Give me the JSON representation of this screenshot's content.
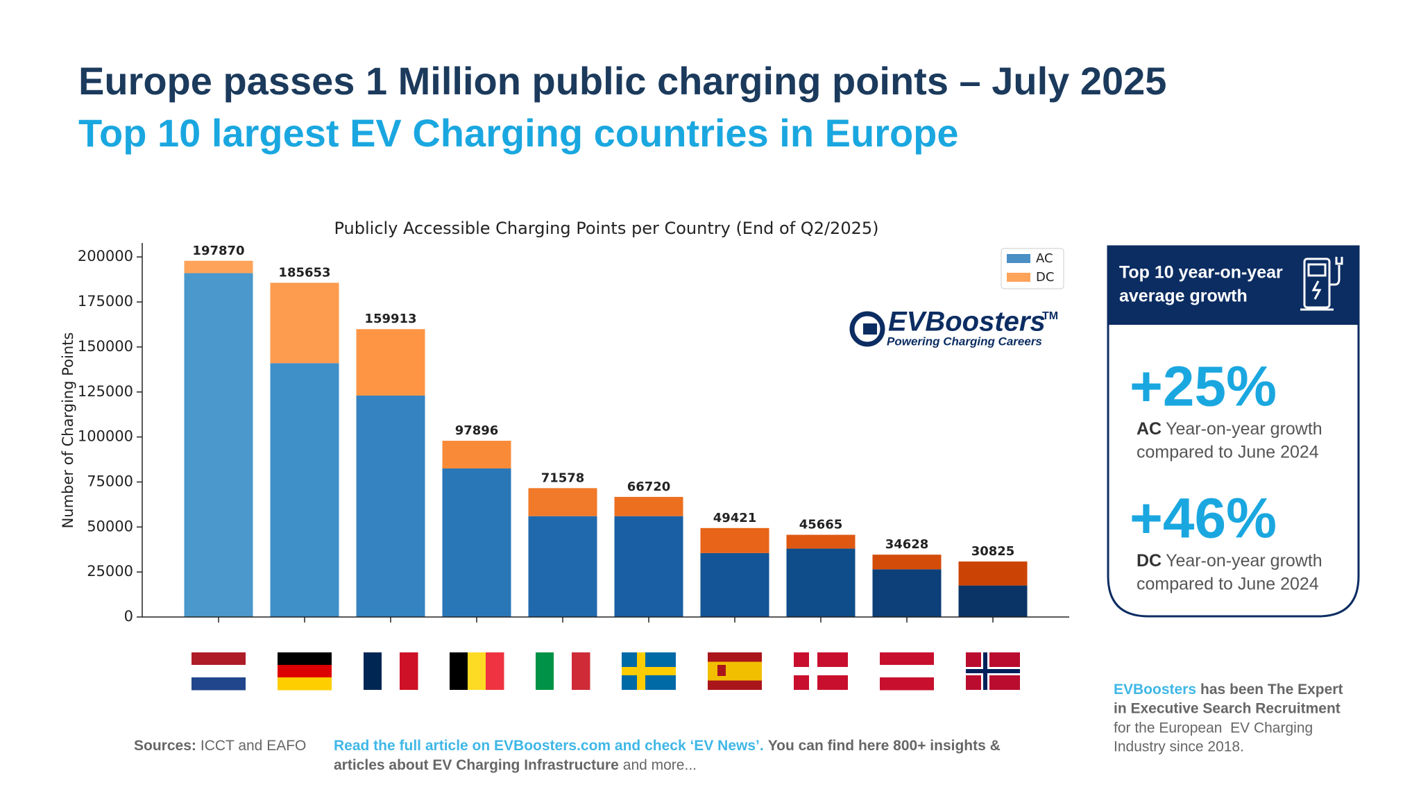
{
  "header": {
    "title": "Europe passes 1 Million public charging points – July 2025",
    "subtitle": "Top 10 largest EV Charging countries in Europe"
  },
  "chart_data": {
    "type": "stacked_bar",
    "title": "Publicly Accessible Charging Points per Country (End of Q2/2025)",
    "ylabel": "Number of Charging Points",
    "categories": [
      null,
      null,
      null,
      null,
      null,
      null,
      null,
      null,
      null,
      null
    ],
    "series": [
      {
        "name": "AC",
        "color": "#4a8fc6",
        "colors": [
          "#4a98cc",
          "#3f8fc8",
          "#3583c0",
          "#2a77b8",
          "#2169ad",
          "#1a5fa3",
          "#135596",
          "#0f4c8a",
          "#0d3f78",
          "#0b3466"
        ],
        "values": [
          191000,
          141000,
          123000,
          82500,
          56000,
          56000,
          35500,
          38000,
          26500,
          17500
        ]
      },
      {
        "name": "DC",
        "color": "#fda35a",
        "colors": [
          "#fda35a",
          "#fd9c4e",
          "#fd9545",
          "#f88a38",
          "#f0792a",
          "#ec6f20",
          "#e76418",
          "#de5812",
          "#d44c0a",
          "#cb4405"
        ],
        "values": [
          6870,
          44653,
          36913,
          15396,
          15578,
          10720,
          13921,
          7665,
          8128,
          13325
        ]
      }
    ],
    "totals": [
      197870,
      185653,
      159913,
      97896,
      71578,
      66720,
      49421,
      45665,
      34628,
      30825
    ],
    "ylim": [
      0,
      207800
    ],
    "yticks": [
      0,
      25000,
      50000,
      75000,
      100000,
      125000,
      150000,
      175000,
      200000
    ],
    "legend": "upper right"
  },
  "logo": {
    "name": "EVBoosters",
    "mark": "TM",
    "tagline": "Powering Charging Careers"
  },
  "panel": {
    "title_lines": [
      "Top 10 year-on-year",
      "average growth"
    ],
    "items": [
      {
        "value": "+25%",
        "label": "AC",
        "lines": [
          "Year-on-year growth",
          "compared to June 2024"
        ]
      },
      {
        "value": "+46%",
        "label": "DC",
        "lines": [
          "Year-on-year growth",
          "compared to June 2024"
        ]
      }
    ]
  },
  "footer": {
    "sources_label": "Sources:",
    "sources": "ICCT and EAFO",
    "article_link": "Read the full article on EVBoosters.com and check ‘EV News’.",
    "article_rest": "You can find here 800+ insights &",
    "article_line2": "articles about EV Charging Infrastructure",
    "article_tail": "and more...",
    "about_brand": "EVBoosters",
    "about_lines": [
      "has been The Expert",
      "in Executive Search Recruitment",
      "for the European  EV Charging",
      "Industry since 2018."
    ]
  }
}
